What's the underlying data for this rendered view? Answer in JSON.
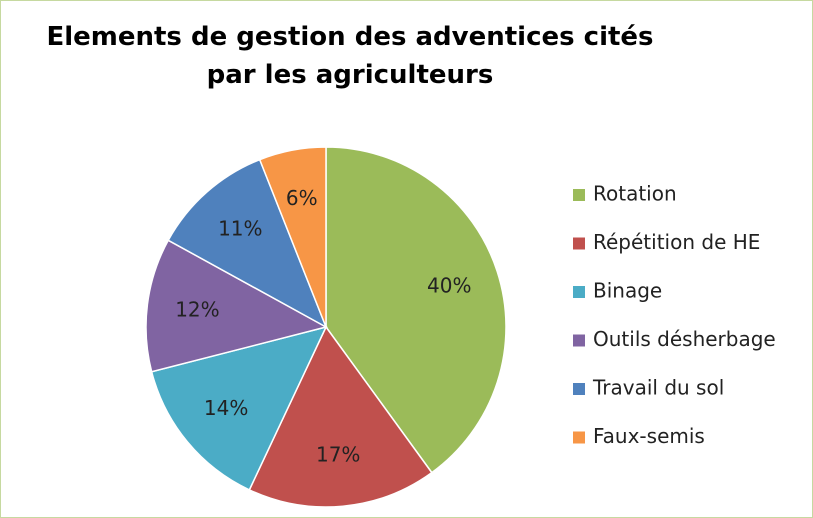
{
  "chart_data": {
    "type": "pie",
    "title": "Elements de gestion des adventices cités par les agriculteurs",
    "categories": [
      "Rotation",
      "Répétition de HE",
      "Binage",
      "Outils désherbage",
      "Travail du sol",
      "Faux-semis"
    ],
    "values": [
      40,
      17,
      14,
      12,
      11,
      6
    ],
    "value_labels": [
      "40%",
      "17%",
      "14%",
      "12%",
      "11%",
      "6%"
    ],
    "colors": [
      "#9bbb59",
      "#c0504d",
      "#4bacc6",
      "#8064a2",
      "#4f81bd",
      "#f79646"
    ],
    "legend": "right"
  }
}
